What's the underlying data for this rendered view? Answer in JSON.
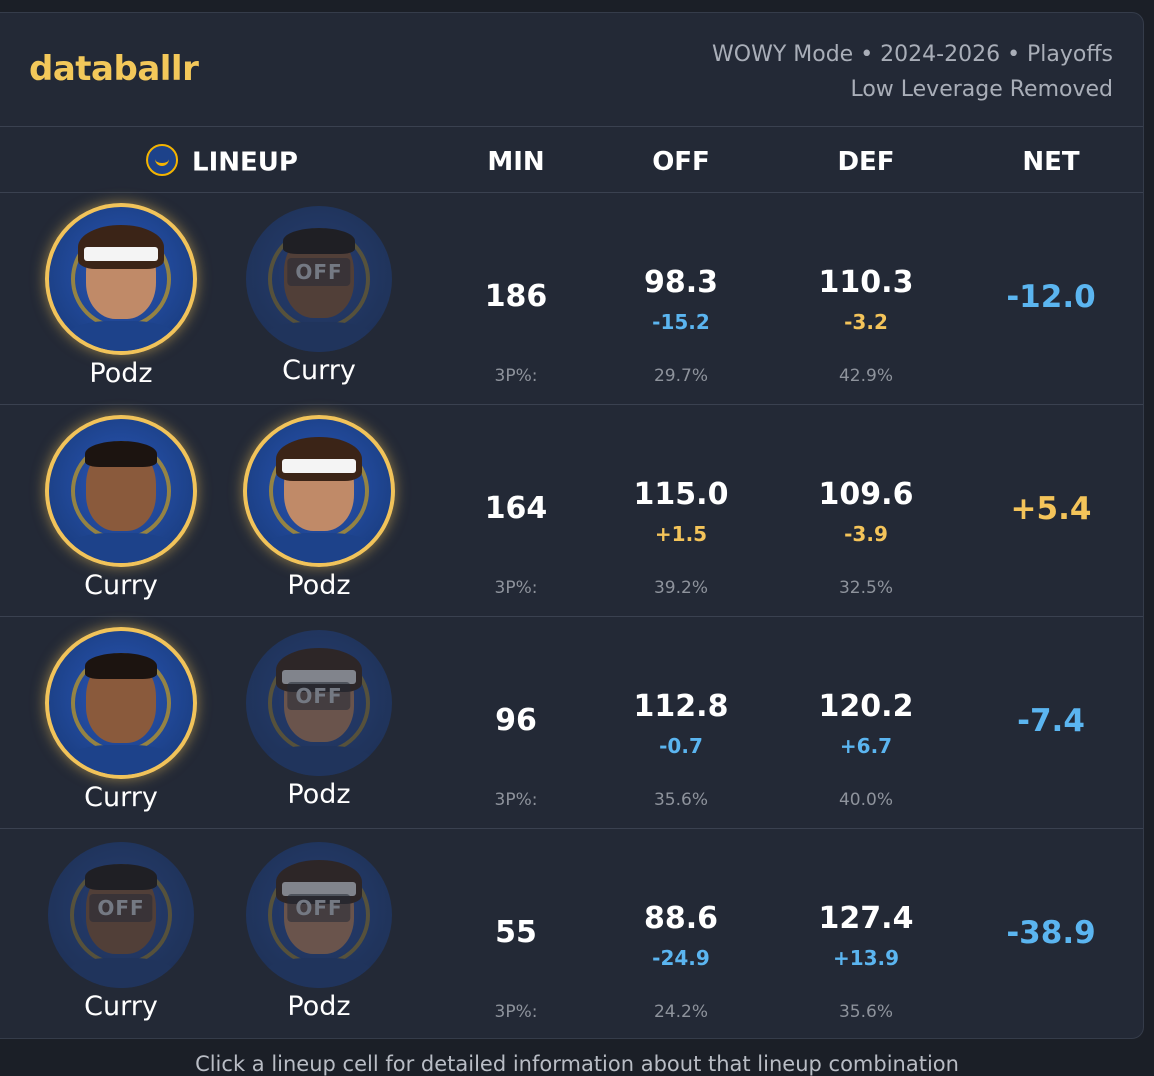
{
  "brand": "databallr",
  "meta": {
    "line1": "WOWY Mode • 2024-2026 • Playoffs",
    "line2": "Low Leverage Removed"
  },
  "columns": {
    "lineup": "LINEUP",
    "min": "MIN",
    "off": "OFF",
    "def": "DEF",
    "net": "NET"
  },
  "off_label": "OFF",
  "threep_label": "3P%:",
  "colors": {
    "positive": "#f4c45a",
    "negative": "#5bb5f0",
    "brand": "#f3c85a"
  },
  "rows": [
    {
      "players": [
        {
          "name": "Podz",
          "status": "on",
          "icon": "podz-headshot"
        },
        {
          "name": "Curry",
          "status": "off",
          "icon": "curry-headshot"
        }
      ],
      "min": "186",
      "off": "98.3",
      "off_delta": "-15.2",
      "off_delta_color": "blue",
      "def": "110.3",
      "def_delta": "-3.2",
      "def_delta_color": "gold",
      "net": "-12.0",
      "net_color": "blue",
      "off_3p": "29.7%",
      "def_3p": "42.9%"
    },
    {
      "players": [
        {
          "name": "Curry",
          "status": "on",
          "icon": "curry-headshot"
        },
        {
          "name": "Podz",
          "status": "on",
          "icon": "podz-headshot"
        }
      ],
      "min": "164",
      "off": "115.0",
      "off_delta": "+1.5",
      "off_delta_color": "gold",
      "def": "109.6",
      "def_delta": "-3.9",
      "def_delta_color": "gold",
      "net": "+5.4",
      "net_color": "gold",
      "off_3p": "39.2%",
      "def_3p": "32.5%"
    },
    {
      "players": [
        {
          "name": "Curry",
          "status": "on",
          "icon": "curry-headshot"
        },
        {
          "name": "Podz",
          "status": "off",
          "icon": "podz-headshot"
        }
      ],
      "min": "96",
      "off": "112.8",
      "off_delta": "-0.7",
      "off_delta_color": "blue",
      "def": "120.2",
      "def_delta": "+6.7",
      "def_delta_color": "blue",
      "net": "-7.4",
      "net_color": "blue",
      "off_3p": "35.6%",
      "def_3p": "40.0%"
    },
    {
      "players": [
        {
          "name": "Curry",
          "status": "off",
          "icon": "curry-headshot"
        },
        {
          "name": "Podz",
          "status": "off",
          "icon": "podz-headshot"
        }
      ],
      "min": "55",
      "off": "88.6",
      "off_delta": "-24.9",
      "off_delta_color": "blue",
      "def": "127.4",
      "def_delta": "+13.9",
      "def_delta_color": "blue",
      "net": "-38.9",
      "net_color": "blue",
      "off_3p": "24.2%",
      "def_3p": "35.6%"
    }
  ],
  "footer": "Click a lineup cell for detailed information about that lineup combination"
}
